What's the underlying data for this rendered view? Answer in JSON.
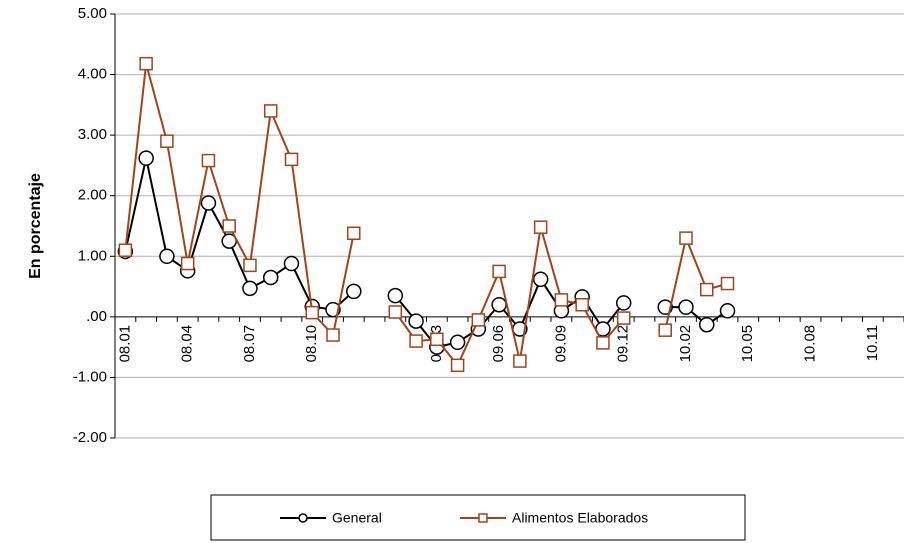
{
  "chart_data": {
    "type": "line",
    "ylabel": "En porcentaje",
    "categories": [
      "08.01",
      null,
      null,
      "08.04",
      null,
      null,
      "08.07",
      null,
      null,
      "08.10",
      null,
      null,
      null,
      null,
      null,
      "09.03",
      null,
      null,
      "09.06",
      null,
      null,
      "09.09",
      null,
      null,
      "09.12",
      null,
      null,
      "10.02",
      null,
      null,
      "10.05",
      null,
      null,
      "10.08",
      null,
      null,
      "10.11",
      null
    ],
    "series": [
      {
        "name": "General",
        "color": "#000000",
        "marker": "circle",
        "values": [
          1.08,
          2.62,
          1.0,
          0.76,
          1.88,
          1.25,
          0.47,
          0.65,
          0.88,
          0.17,
          0.12,
          0.42,
          null,
          0.35,
          -0.07,
          -0.5,
          -0.42,
          -0.2,
          0.2,
          -0.2,
          0.62,
          0.1,
          0.33,
          -0.2,
          0.23,
          null,
          0.16,
          0.16,
          -0.13,
          0.1,
          null,
          null,
          null,
          null,
          null,
          null,
          null,
          null
        ]
      },
      {
        "name": "Alimentos Elaborados",
        "color": "#a0441b",
        "marker": "square",
        "values": [
          1.1,
          4.18,
          2.9,
          0.88,
          2.58,
          1.5,
          0.85,
          3.4,
          2.6,
          0.07,
          -0.3,
          1.38,
          null,
          0.08,
          -0.4,
          -0.37,
          -0.8,
          -0.05,
          0.75,
          -0.73,
          1.48,
          0.28,
          0.2,
          -0.43,
          -0.02,
          null,
          -0.22,
          1.3,
          0.45,
          0.55,
          null,
          null,
          null,
          null,
          null,
          null,
          null,
          null
        ]
      }
    ],
    "ylim": [
      -2,
      5
    ],
    "yticks": [
      {
        "value": -2,
        "label": "-2.00"
      },
      {
        "value": -1,
        "label": "-1.00"
      },
      {
        "value": 0,
        "label": ".00"
      },
      {
        "value": 1,
        "label": "1.00"
      },
      {
        "value": 2,
        "label": "2.00"
      },
      {
        "value": 3,
        "label": "3.00"
      },
      {
        "value": 4,
        "label": "4.00"
      },
      {
        "value": 5,
        "label": "5.00"
      }
    ],
    "grid": true,
    "legend": "bottom"
  }
}
